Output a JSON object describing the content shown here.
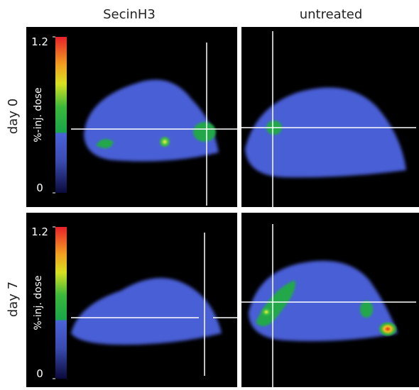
{
  "columns": [
    "SecinH3",
    "untreated"
  ],
  "rows": [
    {
      "label": "day 0",
      "colorbar": {
        "label": "%-inj. dose",
        "ticks": [
          0,
          1.2
        ]
      }
    },
    {
      "label": "day 7",
      "colorbar": {
        "label": "%-inj. dose",
        "ticks": [
          0,
          1.2
        ]
      }
    }
  ]
}
